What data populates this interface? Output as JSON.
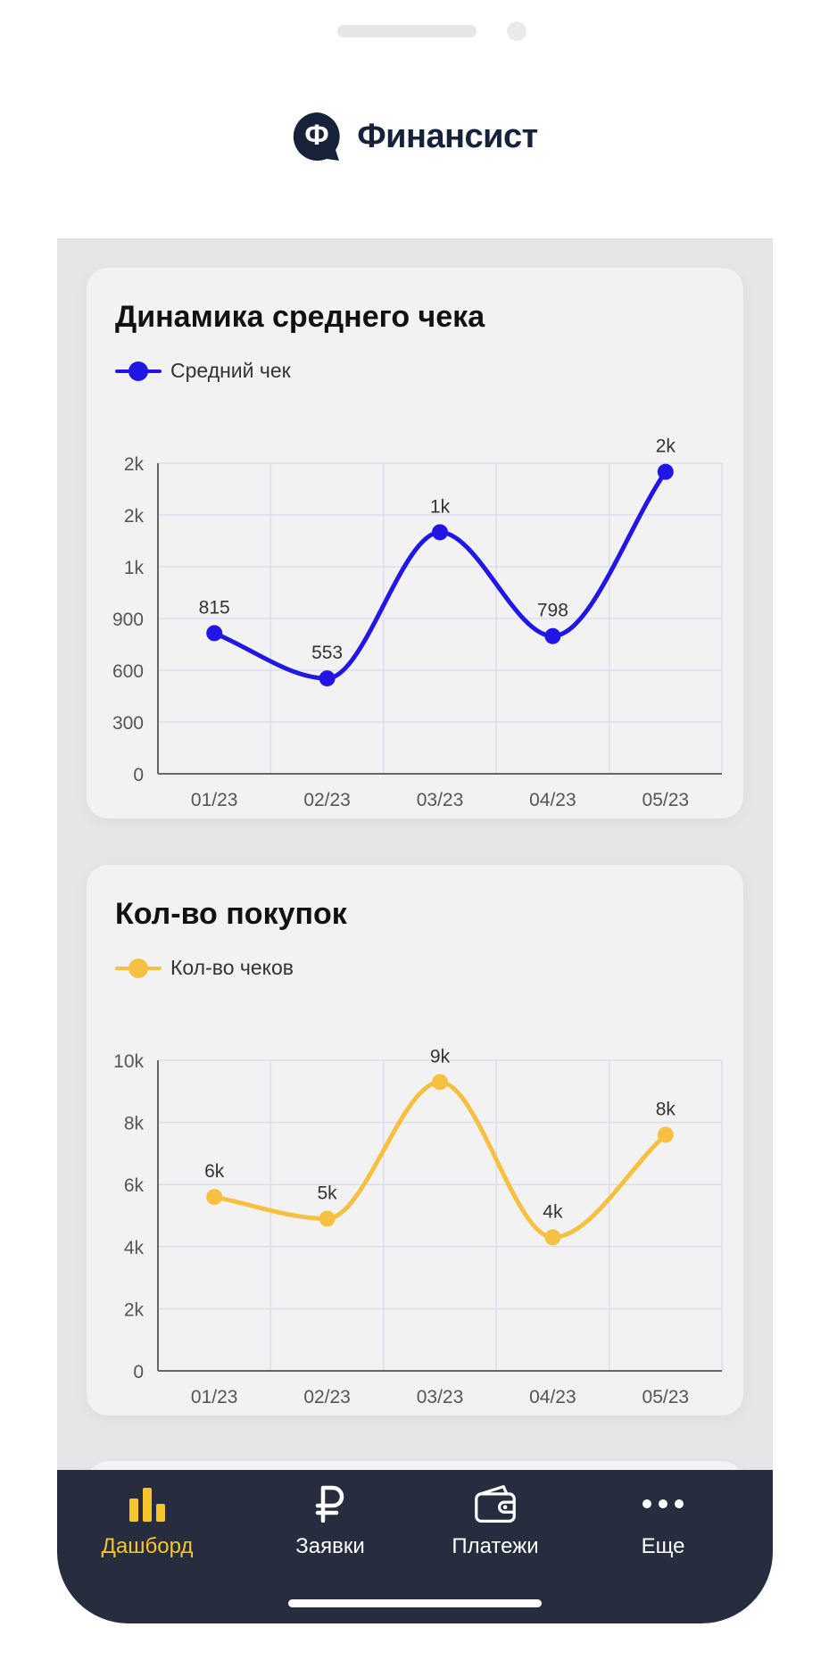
{
  "app": {
    "name": "Финансист",
    "logo_letter": "Ф"
  },
  "colors": {
    "brand": "#16223a",
    "series_check": "#2216e6",
    "series_purchases": "#f6c042",
    "tabbar": "#262d3f",
    "tab_active": "#f6c42c"
  },
  "cards": [
    {
      "title": "Динамика среднего чека",
      "legend": "Средний чек"
    },
    {
      "title": "Кол-во покупок",
      "legend": "Кол-во чеков"
    }
  ],
  "chart_data": [
    {
      "type": "line",
      "title": "Динамика среднего чека",
      "categories": [
        "01/23",
        "02/23",
        "03/23",
        "04/23",
        "05/23"
      ],
      "series": [
        {
          "name": "Средний чек",
          "values": [
            815,
            553,
            1400,
            798,
            1750
          ],
          "data_labels": [
            "815",
            "553",
            "1k",
            "798",
            "2k"
          ]
        }
      ],
      "ylim": [
        0,
        1800
      ],
      "yticks": [
        0,
        300,
        600,
        900,
        1200,
        1500,
        1800
      ],
      "ytick_labels": [
        "0",
        "300",
        "600",
        "900",
        "1k",
        "2k",
        "2k"
      ],
      "grid": true,
      "smooth": true,
      "legend_position": "top-left"
    },
    {
      "type": "line",
      "title": "Кол-во покупок",
      "categories": [
        "01/23",
        "02/23",
        "03/23",
        "04/23",
        "05/23"
      ],
      "series": [
        {
          "name": "Кол-во чеков",
          "values": [
            5600,
            4900,
            9300,
            4300,
            7600
          ],
          "data_labels": [
            "6k",
            "5k",
            "9k",
            "4k",
            "8k"
          ]
        }
      ],
      "ylim": [
        0,
        10000
      ],
      "yticks": [
        0,
        2000,
        4000,
        6000,
        8000,
        10000
      ],
      "ytick_labels": [
        "0",
        "2k",
        "4k",
        "6k",
        "8k",
        "10k"
      ],
      "grid": true,
      "smooth": true,
      "legend_position": "top-left"
    }
  ],
  "tabs": [
    {
      "label": "Дашборд",
      "icon": "bar-chart-icon",
      "active": true
    },
    {
      "label": "Заявки",
      "icon": "ruble-icon",
      "active": false
    },
    {
      "label": "Платежи",
      "icon": "wallet-icon",
      "active": false
    },
    {
      "label": "Еще",
      "icon": "more-icon",
      "active": false
    }
  ]
}
